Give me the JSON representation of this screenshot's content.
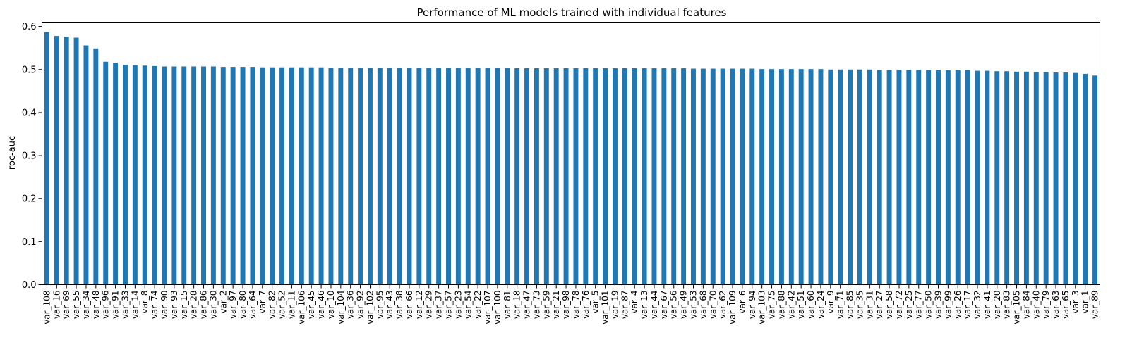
{
  "chart_data": {
    "type": "bar",
    "title": "Performance of ML models trained with individual features",
    "xlabel": "",
    "ylabel": "roc-auc",
    "ylim": [
      0,
      0.61
    ],
    "yticks": [
      0.0,
      0.1,
      0.2,
      0.3,
      0.4,
      0.5,
      0.6
    ],
    "ytick_labels": [
      "0.0",
      "0.1",
      "0.2",
      "0.3",
      "0.4",
      "0.5",
      "0.6"
    ],
    "bar_color": "#1f77b4",
    "grid": false,
    "categories": [
      "var_108",
      "var_16",
      "var_69",
      "var_55",
      "var_34",
      "var_48",
      "var_96",
      "var_91",
      "var_33",
      "var_14",
      "var_8",
      "var_74",
      "var_90",
      "var_93",
      "var_15",
      "var_28",
      "var_86",
      "var_30",
      "var_2",
      "var_97",
      "var_80",
      "var_64",
      "var_7",
      "var_82",
      "var_52",
      "var_11",
      "var_106",
      "var_45",
      "var_46",
      "var_10",
      "var_104",
      "var_36",
      "var_92",
      "var_102",
      "var_95",
      "var_43",
      "var_38",
      "var_66",
      "var_12",
      "var_29",
      "var_37",
      "var_57",
      "var_23",
      "var_54",
      "var_22",
      "var_107",
      "var_100",
      "var_81",
      "var_18",
      "var_47",
      "var_73",
      "var_59",
      "var_21",
      "var_98",
      "var_78",
      "var_76",
      "var_5",
      "var_101",
      "var_19",
      "var_87",
      "var_4",
      "var_13",
      "var_44",
      "var_67",
      "var_56",
      "var_49",
      "var_53",
      "var_68",
      "var_70",
      "var_62",
      "var_109",
      "var_6",
      "var_94",
      "var_103",
      "var_75",
      "var_88",
      "var_42",
      "var_51",
      "var_60",
      "var_24",
      "var_9",
      "var_71",
      "var_85",
      "var_35",
      "var_31",
      "var_27",
      "var_58",
      "var_72",
      "var_25",
      "var_77",
      "var_50",
      "var_39",
      "var_99",
      "var_26",
      "var_17",
      "var_32",
      "var_41",
      "var_20",
      "var_83",
      "var_105",
      "var_84",
      "var_40",
      "var_79",
      "var_63",
      "var_65",
      "var_3",
      "var_1",
      "var_89"
    ],
    "values": [
      0.587,
      0.578,
      0.576,
      0.574,
      0.556,
      0.549,
      0.518,
      0.516,
      0.511,
      0.51,
      0.509,
      0.508,
      0.507,
      0.507,
      0.507,
      0.507,
      0.507,
      0.507,
      0.506,
      0.506,
      0.506,
      0.506,
      0.505,
      0.505,
      0.505,
      0.505,
      0.505,
      0.505,
      0.505,
      0.504,
      0.504,
      0.504,
      0.504,
      0.504,
      0.504,
      0.504,
      0.504,
      0.504,
      0.504,
      0.504,
      0.504,
      0.504,
      0.504,
      0.504,
      0.504,
      0.504,
      0.504,
      0.504,
      0.503,
      0.503,
      0.503,
      0.503,
      0.503,
      0.503,
      0.503,
      0.503,
      0.503,
      0.503,
      0.503,
      0.503,
      0.503,
      0.503,
      0.503,
      0.503,
      0.503,
      0.503,
      0.502,
      0.502,
      0.502,
      0.502,
      0.502,
      0.502,
      0.502,
      0.501,
      0.501,
      0.501,
      0.501,
      0.501,
      0.501,
      0.501,
      0.5,
      0.5,
      0.5,
      0.5,
      0.5,
      0.499,
      0.499,
      0.499,
      0.499,
      0.499,
      0.499,
      0.499,
      0.498,
      0.498,
      0.498,
      0.497,
      0.497,
      0.496,
      0.496,
      0.495,
      0.495,
      0.494,
      0.494,
      0.493,
      0.493,
      0.492,
      0.49,
      0.486
    ]
  }
}
